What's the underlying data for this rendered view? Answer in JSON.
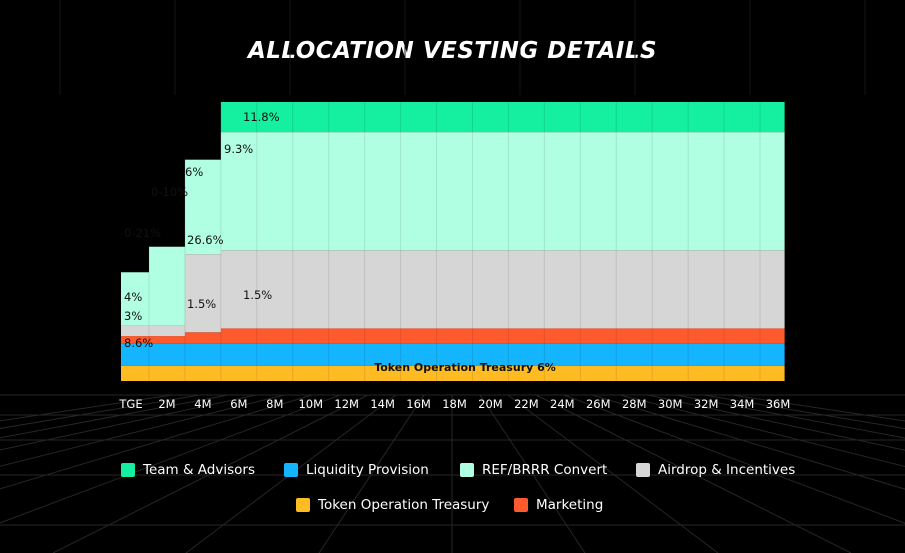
{
  "chart_data": {
    "type": "area",
    "title": "ALLOCATION VESTING DETAILS",
    "x_ticks": [
      "TGE",
      "2M",
      "4M",
      "6M",
      "8M",
      "10M",
      "12M",
      "14M",
      "16M",
      "18M",
      "20M",
      "22M",
      "24M",
      "26M",
      "28M",
      "30M",
      "32M",
      "34M",
      "36M"
    ],
    "grid": true,
    "legend_position": "bottom",
    "series": [
      {
        "name": "Token Operation Treasury",
        "color": "#FFBB22",
        "values": [
          6,
          6,
          6,
          6,
          6,
          6,
          6,
          6,
          6,
          6,
          6,
          6,
          6,
          6,
          6,
          6,
          6,
          6,
          6
        ]
      },
      {
        "name": "Liquidity Provision",
        "color": "#14B4FF",
        "values": [
          8.6,
          8.6,
          8.6,
          8.6,
          8.6,
          8.6,
          8.6,
          8.6,
          8.6,
          8.6,
          8.6,
          8.6,
          8.6,
          8.6,
          8.6,
          8.6,
          8.6,
          8.6,
          8.6
        ]
      },
      {
        "name": "Marketing",
        "color": "#FF5A2E",
        "values": [
          3,
          3,
          4.5,
          6,
          6,
          6,
          6,
          6,
          6,
          6,
          6,
          6,
          6,
          6,
          6,
          6,
          6,
          6,
          6
        ]
      },
      {
        "name": "Airdrop & Incentives",
        "color": "#D6D6D6",
        "values": [
          4,
          4,
          30.6,
          30.6,
          30.6,
          30.6,
          30.6,
          30.6,
          30.6,
          30.6,
          30.6,
          30.6,
          30.6,
          30.6,
          30.6,
          30.6,
          30.6,
          30.6,
          30.6
        ]
      },
      {
        "name": "REF/BRRR Convert",
        "color": "#B0FFE2",
        "values": [
          21,
          31,
          37,
          46.3,
          46.3,
          46.3,
          46.3,
          46.3,
          46.3,
          46.3,
          46.3,
          46.3,
          46.3,
          46.3,
          46.3,
          46.3,
          46.3,
          46.3,
          46.3
        ]
      },
      {
        "name": "Team & Advisors",
        "color": "#15EFA0",
        "values": [
          0,
          0,
          0,
          11.8,
          11.8,
          11.8,
          11.8,
          11.8,
          11.8,
          11.8,
          11.8,
          11.8,
          11.8,
          11.8,
          11.8,
          11.8,
          11.8,
          11.8,
          11.8
        ]
      }
    ],
    "data_labels": [
      "11.8%",
      "9.3%",
      "6%",
      "0-10%",
      "0-21%",
      "26.6%",
      "4%",
      "1.5%",
      "1.5%",
      "3%",
      "8.6%",
      "Token Operation Treasury 6%"
    ],
    "legend": [
      {
        "label": "Team & Advisors",
        "color": "#15EFA0"
      },
      {
        "label": "Liquidity Provision",
        "color": "#14B4FF"
      },
      {
        "label": "REF/BRRR Convert",
        "color": "#B0FFE2"
      },
      {
        "label": "Airdrop & Incentives",
        "color": "#D6D6D6"
      },
      {
        "label": "Token Operation Treasury",
        "color": "#FFBB22"
      },
      {
        "label": "Marketing",
        "color": "#FF5A2E"
      }
    ]
  }
}
